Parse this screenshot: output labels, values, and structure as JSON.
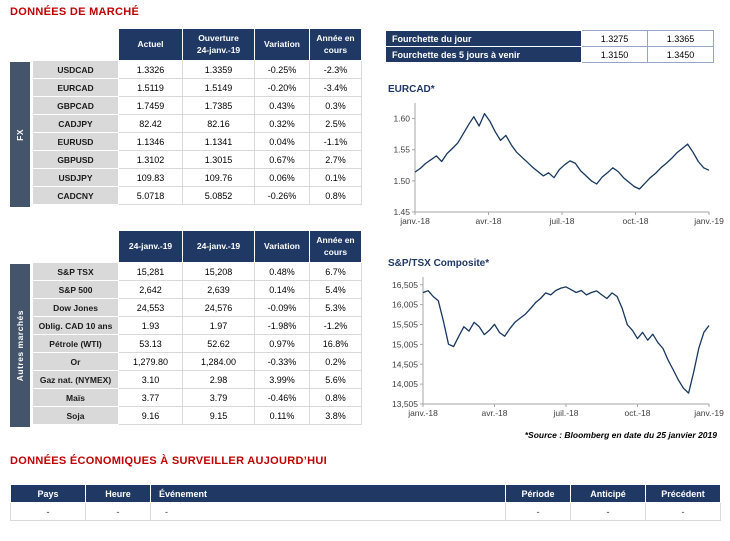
{
  "page": {
    "title": "DONNÉES DE MARCHÉ",
    "econ_title": "DONNÉES ÉCONOMIQUES À SURVEILLER",
    "econ_title_highlight": "AUJOURD’HUI",
    "source_note": "*Source : Bloomberg en date du  25 janvier 2019"
  },
  "colors": {
    "navy": "#1F3864",
    "sidebar": "#44546A",
    "heading_red": "#C00000",
    "positive": "#00B050",
    "negative": "#FF0000",
    "label_gray": "#D9D9D9"
  },
  "fx_table": {
    "sidebar_label": "FX",
    "headers": [
      "Actuel",
      "Ouverture\n24-janv.-19",
      "Variation",
      "Année en\ncours"
    ],
    "rows": [
      [
        "USDCAD",
        "1.3326",
        "1.3359",
        "-0.25%",
        "-2.3%"
      ],
      [
        "EURCAD",
        "1.5119",
        "1.5149",
        "-0.20%",
        "-3.4%"
      ],
      [
        "GBPCAD",
        "1.7459",
        "1.7385",
        "0.43%",
        "0.3%"
      ],
      [
        "CADJPY",
        "82.42",
        "82.16",
        "0.32%",
        "2.5%"
      ],
      [
        "EURUSD",
        "1.1346",
        "1.1341",
        "0.04%",
        "-1.1%"
      ],
      [
        "GBPUSD",
        "1.3102",
        "1.3015",
        "0.67%",
        "2.7%"
      ],
      [
        "USDJPY",
        "109.83",
        "109.76",
        "0.06%",
        "0.1%"
      ],
      [
        "CADCNY",
        "5.0718",
        "5.0852",
        "-0.26%",
        "0.8%"
      ]
    ]
  },
  "markets_table": {
    "sidebar_label": "Autres marchés",
    "headers": [
      "24-janv.-19",
      "24-janv.-19",
      "Variation",
      "Année en\ncours"
    ],
    "rows": [
      [
        "S&P TSX",
        "15,281",
        "15,208",
        "0.48%",
        "6.7%"
      ],
      [
        "S&P 500",
        "2,642",
        "2,639",
        "0.14%",
        "5.4%"
      ],
      [
        "Dow Jones",
        "24,553",
        "24,576",
        "-0.09%",
        "5.3%"
      ],
      [
        "Oblig. CAD 10 ans",
        "1.93",
        "1.97",
        "-1.98%",
        "-1.2%"
      ],
      [
        "Pétrole (WTI)",
        "53.13",
        "52.62",
        "0.97%",
        "16.8%"
      ],
      [
        "Or",
        "1,279.80",
        "1,284.00",
        "-0.33%",
        "0.2%"
      ],
      [
        "Gaz nat. (NYMEX)",
        "3.10",
        "2.98",
        "3.99%",
        "5.6%"
      ],
      [
        "Maïs",
        "3.77",
        "3.79",
        "-0.46%",
        "0.8%"
      ],
      [
        "Soja",
        "9.16",
        "9.15",
        "0.11%",
        "3.8%"
      ]
    ]
  },
  "range_table": {
    "rows": [
      {
        "label": "Fourchette du jour",
        "low": "1.3275",
        "high": "1.3365"
      },
      {
        "label": "Fourchette des 5 jours à venir",
        "low": "1.3150",
        "high": "1.3450"
      }
    ]
  },
  "econ_table": {
    "headers": [
      "Pays",
      "Heure",
      "Événement",
      "Période",
      "Anticipé",
      "Précédent"
    ],
    "rows": [
      [
        "-",
        "-",
        "-",
        "-",
        "-",
        "-"
      ]
    ]
  },
  "chart_data": [
    {
      "type": "line",
      "title": "EURCAD*",
      "x_ticks": [
        "janv.-18",
        "avr.-18",
        "juil.-18",
        "oct.-18",
        "janv.-19"
      ],
      "y_ticks": [
        {
          "label": "1.45",
          "value": 1.45
        },
        {
          "label": "1.50",
          "value": 1.5
        },
        {
          "label": "1.55",
          "value": 1.55
        },
        {
          "label": "1.60",
          "value": 1.6
        }
      ],
      "ylim": [
        1.45,
        1.625
      ],
      "line_color": "#17375E",
      "grid": false,
      "legend": "none",
      "values": [
        1.514,
        1.52,
        1.528,
        1.534,
        1.54,
        1.531,
        1.544,
        1.552,
        1.561,
        1.575,
        1.59,
        1.603,
        1.588,
        1.608,
        1.596,
        1.579,
        1.565,
        1.573,
        1.558,
        1.546,
        1.538,
        1.53,
        1.522,
        1.515,
        1.508,
        1.513,
        1.505,
        1.518,
        1.526,
        1.532,
        1.528,
        1.516,
        1.508,
        1.5,
        1.495,
        1.506,
        1.513,
        1.521,
        1.515,
        1.505,
        1.498,
        1.491,
        1.487,
        1.496,
        1.505,
        1.512,
        1.521,
        1.528,
        1.536,
        1.545,
        1.552,
        1.559,
        1.546,
        1.531,
        1.521,
        1.517
      ]
    },
    {
      "type": "line",
      "title": "S&P/TSX Composite*",
      "x_ticks": [
        "janv.-18",
        "avr.-18",
        "juil.-18",
        "oct.-18",
        "janv.-19"
      ],
      "y_ticks": [
        {
          "label": "13,505",
          "value": 13505
        },
        {
          "label": "14,005",
          "value": 14005
        },
        {
          "label": "14,505",
          "value": 14505
        },
        {
          "label": "15,005",
          "value": 15005
        },
        {
          "label": "15,505",
          "value": 15505
        },
        {
          "label": "16,005",
          "value": 16005
        },
        {
          "label": "16,505",
          "value": 16505
        }
      ],
      "ylim": [
        13505,
        16700
      ],
      "line_color": "#17375E",
      "grid": false,
      "legend": "none",
      "values": [
        16308,
        16355,
        16210,
        16105,
        15590,
        15010,
        14950,
        15210,
        15450,
        15340,
        15560,
        15450,
        15250,
        15360,
        15510,
        15300,
        15210,
        15400,
        15560,
        15660,
        15760,
        15900,
        16050,
        16160,
        16300,
        16250,
        16360,
        16420,
        16450,
        16380,
        16310,
        16360,
        16250,
        16310,
        16350,
        16250,
        16160,
        16300,
        16210,
        15910,
        15500,
        15360,
        15150,
        15310,
        15110,
        15260,
        15050,
        14900,
        14610,
        14360,
        14110,
        13900,
        13780,
        14310,
        14910,
        15310,
        15480
      ]
    }
  ]
}
